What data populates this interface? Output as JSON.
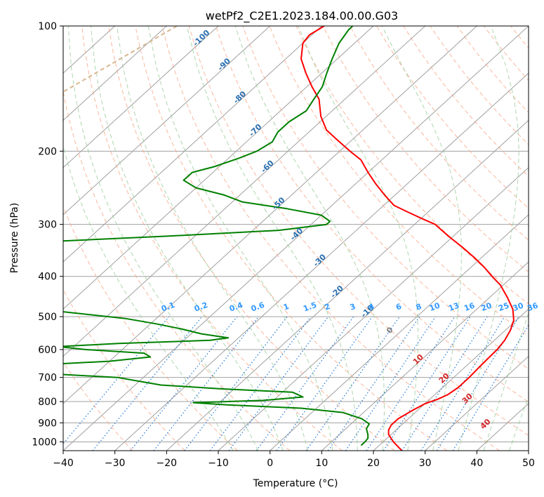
{
  "chart_data": {
    "type": "line",
    "title": "wetPf2_C2E1.2023.184.00.00.G03",
    "xlabel": "Temperature (°C)",
    "ylabel": "Pressure (hPa)",
    "xlim": [
      -40,
      50
    ],
    "ylim": [
      1050,
      100
    ],
    "y_scale": "log",
    "grid": true,
    "x_ticks": [
      "−40",
      "−30",
      "−20",
      "−10",
      "0",
      "10",
      "20",
      "30",
      "40",
      "50"
    ],
    "y_ticks": [
      "100",
      "200",
      "300",
      "400",
      "500",
      "600",
      "700",
      "800",
      "900",
      "1000"
    ],
    "series": [
      {
        "color": "#ff0000",
        "points": [
          [
            1050,
            25.5
          ],
          [
            1000,
            22.0
          ],
          [
            960,
            19.5
          ],
          [
            935,
            18.5
          ],
          [
            910,
            18.0
          ],
          [
            880,
            18.0
          ],
          [
            840,
            19.0
          ],
          [
            810,
            20.0
          ],
          [
            790,
            21.5
          ],
          [
            770,
            22.5
          ],
          [
            740,
            23.0
          ],
          [
            700,
            23.0
          ],
          [
            650,
            22.7
          ],
          [
            600,
            22.5
          ],
          [
            570,
            22.0
          ],
          [
            540,
            21.0
          ],
          [
            510,
            19.5
          ],
          [
            480,
            17.0
          ],
          [
            450,
            13.5
          ],
          [
            420,
            9.5
          ],
          [
            400,
            6.0
          ],
          [
            380,
            2.5
          ],
          [
            360,
            -1.5
          ],
          [
            340,
            -6.0
          ],
          [
            320,
            -11.0
          ],
          [
            300,
            -16.0
          ],
          [
            290,
            -20.0
          ],
          [
            280,
            -24.0
          ],
          [
            270,
            -28.0
          ],
          [
            255,
            -32.0
          ],
          [
            240,
            -36.0
          ],
          [
            225,
            -40.0
          ],
          [
            210,
            -44.0
          ],
          [
            200,
            -48.0
          ],
          [
            190,
            -52.0
          ],
          [
            178,
            -57.0
          ],
          [
            165,
            -61.0
          ],
          [
            150,
            -65.0
          ],
          [
            140,
            -69.0
          ],
          [
            130,
            -73.0
          ],
          [
            120,
            -77.0
          ],
          [
            110,
            -80.0
          ],
          [
            105,
            -80.5
          ],
          [
            100,
            -79.5
          ]
        ]
      },
      {
        "color": "#008000",
        "points": [
          [
            1020,
            16.5
          ],
          [
            1000,
            16.5
          ],
          [
            980,
            16.3
          ],
          [
            960,
            15.5
          ],
          [
            930,
            14.0
          ],
          [
            905,
            13.5
          ],
          [
            880,
            11.0
          ],
          [
            850,
            6.0
          ],
          [
            830,
            -3.0
          ],
          [
            815,
            -18.0
          ],
          [
            805,
            -25.0
          ],
          [
            795,
            -12.0
          ],
          [
            780,
            -5.0
          ],
          [
            760,
            -8.0
          ],
          [
            745,
            -23.0
          ],
          [
            730,
            -35.0
          ],
          [
            715,
            -40.0
          ],
          [
            700,
            -45.0
          ],
          [
            685,
            -60.0
          ],
          [
            670,
            -73.0
          ],
          [
            655,
            -65.0
          ],
          [
            640,
            -50.0
          ],
          [
            625,
            -43.0
          ],
          [
            612,
            -45.0
          ],
          [
            600,
            -57.0
          ],
          [
            590,
            -63.0
          ],
          [
            580,
            -52.0
          ],
          [
            570,
            -35.0
          ],
          [
            562,
            -32.0
          ],
          [
            550,
            -38.0
          ],
          [
            535,
            -43.0
          ],
          [
            520,
            -49.0
          ],
          [
            505,
            -56.0
          ],
          [
            490,
            -67.0
          ],
          [
            475,
            -78.0
          ],
          [
            460,
            -90.0
          ],
          [
            440,
            -100.0
          ],
          [
            420,
            -105.0
          ],
          [
            400,
            -108.0
          ],
          [
            385,
            -110.0
          ],
          [
            375,
            -100.0
          ],
          [
            365,
            -107.0
          ],
          [
            355,
            -108.0
          ],
          [
            345,
            -104.0
          ],
          [
            335,
            -98.0
          ],
          [
            320,
            -65.0
          ],
          [
            310,
            -45.0
          ],
          [
            300,
            -37.0
          ],
          [
            295,
            -37.0
          ],
          [
            285,
            -40.0
          ],
          [
            275,
            -48.0
          ],
          [
            265,
            -58.0
          ],
          [
            255,
            -63.0
          ],
          [
            245,
            -70.0
          ],
          [
            235,
            -74.0
          ],
          [
            225,
            -74.0
          ],
          [
            218,
            -71.0
          ],
          [
            208,
            -68.0
          ],
          [
            200,
            -66.0
          ],
          [
            190,
            -65.0
          ],
          [
            180,
            -66.0
          ],
          [
            170,
            -66.0
          ],
          [
            160,
            -65.0
          ],
          [
            150,
            -66.0
          ],
          [
            140,
            -67.0
          ],
          [
            130,
            -69.0
          ],
          [
            120,
            -71.0
          ],
          [
            110,
            -73.0
          ],
          [
            102,
            -74.0
          ],
          [
            100,
            -74.0
          ]
        ]
      }
    ],
    "dry_adiabat_labels": [
      "-100",
      "-90",
      "-80",
      "-70",
      "-60",
      "-50",
      "-40",
      "-30",
      "-20",
      "-10"
    ],
    "moist_adiabat_labels": [
      "0",
      "10",
      "20",
      "30",
      "40"
    ],
    "mixing_ratio_labels": [
      "0.1",
      "0.2",
      "0.4",
      "0.6",
      "1",
      "1.5",
      "2",
      "3",
      "4",
      "6",
      "8",
      "10",
      "13",
      "16",
      "20",
      "25",
      "30",
      "36"
    ],
    "colors": {
      "temperature": "#ff0000",
      "dewpoint": "#008000",
      "isotherm": "#a0a0a0",
      "isobar": "#a0a0a0",
      "dry_adiabat": "#f7a584",
      "moist_adiabat": "#99cc99",
      "mixing_ratio": "#1f77d4",
      "dry_label": "#2a6fb0",
      "moist_label": "#d62728",
      "zero_label": "#808080",
      "mixing_label": "#3399ff",
      "tan_curve": "#d8b890"
    }
  }
}
